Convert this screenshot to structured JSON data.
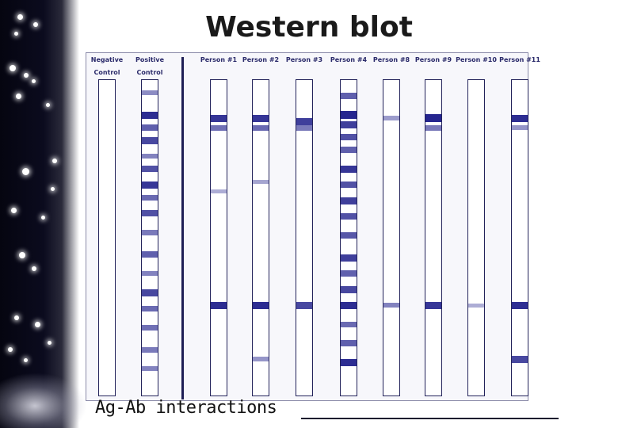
{
  "slide": {
    "title": "Western blot",
    "footer": "Ag-Ab interactions",
    "colors": {
      "band": "#1d1d8a",
      "strip_border": "#22225a",
      "panel": "#f7f7fb"
    }
  },
  "lanes": [
    {
      "label": "Negative\nControl",
      "bands": []
    },
    {
      "label": "Positive\nControl",
      "bands": [
        {
          "pos": 0.04,
          "intensity": 0.35
        },
        {
          "pos": 0.11,
          "intensity": 0.9
        },
        {
          "pos": 0.15,
          "intensity": 0.6
        },
        {
          "pos": 0.19,
          "intensity": 0.75
        },
        {
          "pos": 0.24,
          "intensity": 0.4
        },
        {
          "pos": 0.28,
          "intensity": 0.7
        },
        {
          "pos": 0.33,
          "intensity": 0.85
        },
        {
          "pos": 0.37,
          "intensity": 0.55
        },
        {
          "pos": 0.42,
          "intensity": 0.7
        },
        {
          "pos": 0.48,
          "intensity": 0.45
        },
        {
          "pos": 0.55,
          "intensity": 0.6
        },
        {
          "pos": 0.61,
          "intensity": 0.4
        },
        {
          "pos": 0.67,
          "intensity": 0.75
        },
        {
          "pos": 0.72,
          "intensity": 0.55
        },
        {
          "pos": 0.78,
          "intensity": 0.5
        },
        {
          "pos": 0.85,
          "intensity": 0.45
        },
        {
          "pos": 0.91,
          "intensity": 0.4
        }
      ]
    },
    {
      "label": "Person #1",
      "bands": [
        {
          "pos": 0.12,
          "intensity": 0.85
        },
        {
          "pos": 0.15,
          "intensity": 0.5
        },
        {
          "pos": 0.35,
          "intensity": 0.15
        },
        {
          "pos": 0.71,
          "intensity": 0.9
        }
      ]
    },
    {
      "label": "Person #2",
      "bands": [
        {
          "pos": 0.12,
          "intensity": 0.85
        },
        {
          "pos": 0.15,
          "intensity": 0.55
        },
        {
          "pos": 0.32,
          "intensity": 0.2
        },
        {
          "pos": 0.71,
          "intensity": 0.9
        },
        {
          "pos": 0.88,
          "intensity": 0.3
        }
      ]
    },
    {
      "label": "Person #3",
      "bands": [
        {
          "pos": 0.13,
          "intensity": 0.8
        },
        {
          "pos": 0.15,
          "intensity": 0.45
        },
        {
          "pos": 0.71,
          "intensity": 0.75
        }
      ]
    },
    {
      "label": "Person #4",
      "bands": [
        {
          "pos": 0.05,
          "intensity": 0.6
        },
        {
          "pos": 0.11,
          "intensity": 0.95
        },
        {
          "pos": 0.14,
          "intensity": 0.8
        },
        {
          "pos": 0.18,
          "intensity": 0.7
        },
        {
          "pos": 0.22,
          "intensity": 0.6
        },
        {
          "pos": 0.28,
          "intensity": 0.85
        },
        {
          "pos": 0.33,
          "intensity": 0.7
        },
        {
          "pos": 0.38,
          "intensity": 0.8
        },
        {
          "pos": 0.43,
          "intensity": 0.7
        },
        {
          "pos": 0.49,
          "intensity": 0.65
        },
        {
          "pos": 0.56,
          "intensity": 0.8
        },
        {
          "pos": 0.61,
          "intensity": 0.6
        },
        {
          "pos": 0.66,
          "intensity": 0.75
        },
        {
          "pos": 0.71,
          "intensity": 0.9
        },
        {
          "pos": 0.77,
          "intensity": 0.55
        },
        {
          "pos": 0.83,
          "intensity": 0.6
        },
        {
          "pos": 0.89,
          "intensity": 0.9
        }
      ]
    },
    {
      "label": "Person #8",
      "bands": [
        {
          "pos": 0.12,
          "intensity": 0.25
        },
        {
          "pos": 0.71,
          "intensity": 0.4
        }
      ]
    },
    {
      "label": "Person #9",
      "bands": [
        {
          "pos": 0.12,
          "intensity": 0.95
        },
        {
          "pos": 0.15,
          "intensity": 0.45
        },
        {
          "pos": 0.71,
          "intensity": 0.85
        }
      ]
    },
    {
      "label": "Person #10",
      "bands": [
        {
          "pos": 0.71,
          "intensity": 0.15
        }
      ]
    },
    {
      "label": "Person #11",
      "bands": [
        {
          "pos": 0.12,
          "intensity": 0.9
        },
        {
          "pos": 0.15,
          "intensity": 0.3
        },
        {
          "pos": 0.71,
          "intensity": 0.9
        },
        {
          "pos": 0.88,
          "intensity": 0.75
        }
      ]
    }
  ]
}
